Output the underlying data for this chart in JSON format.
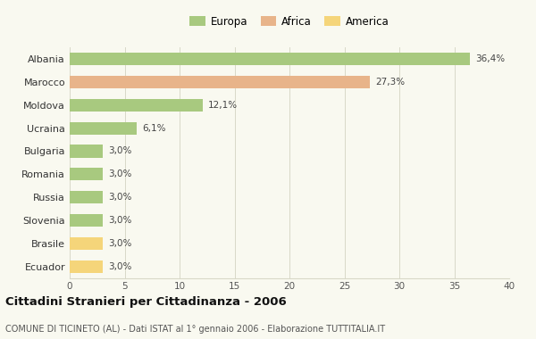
{
  "countries": [
    "Albania",
    "Marocco",
    "Moldova",
    "Ucraina",
    "Bulgaria",
    "Romania",
    "Russia",
    "Slovenia",
    "Brasile",
    "Ecuador"
  ],
  "values": [
    36.4,
    27.3,
    12.1,
    6.1,
    3.0,
    3.0,
    3.0,
    3.0,
    3.0,
    3.0
  ],
  "labels": [
    "36,4%",
    "27,3%",
    "12,1%",
    "6,1%",
    "3,0%",
    "3,0%",
    "3,0%",
    "3,0%",
    "3,0%",
    "3,0%"
  ],
  "colors": [
    "#a8c97f",
    "#e8b48a",
    "#a8c97f",
    "#a8c97f",
    "#a8c97f",
    "#a8c97f",
    "#a8c97f",
    "#a8c97f",
    "#f5d57a",
    "#f5d57a"
  ],
  "legend": [
    {
      "label": "Europa",
      "color": "#a8c97f"
    },
    {
      "label": "Africa",
      "color": "#e8b48a"
    },
    {
      "label": "America",
      "color": "#f5d57a"
    }
  ],
  "title": "Cittadini Stranieri per Cittadinanza - 2006",
  "subtitle": "COMUNE DI TICINETO (AL) - Dati ISTAT al 1° gennaio 2006 - Elaborazione TUTTITALIA.IT",
  "xlim": [
    0,
    40
  ],
  "xticks": [
    0,
    5,
    10,
    15,
    20,
    25,
    30,
    35,
    40
  ],
  "background_color": "#f9f9f0",
  "grid_color": "#d8d8c8",
  "bar_height": 0.55
}
